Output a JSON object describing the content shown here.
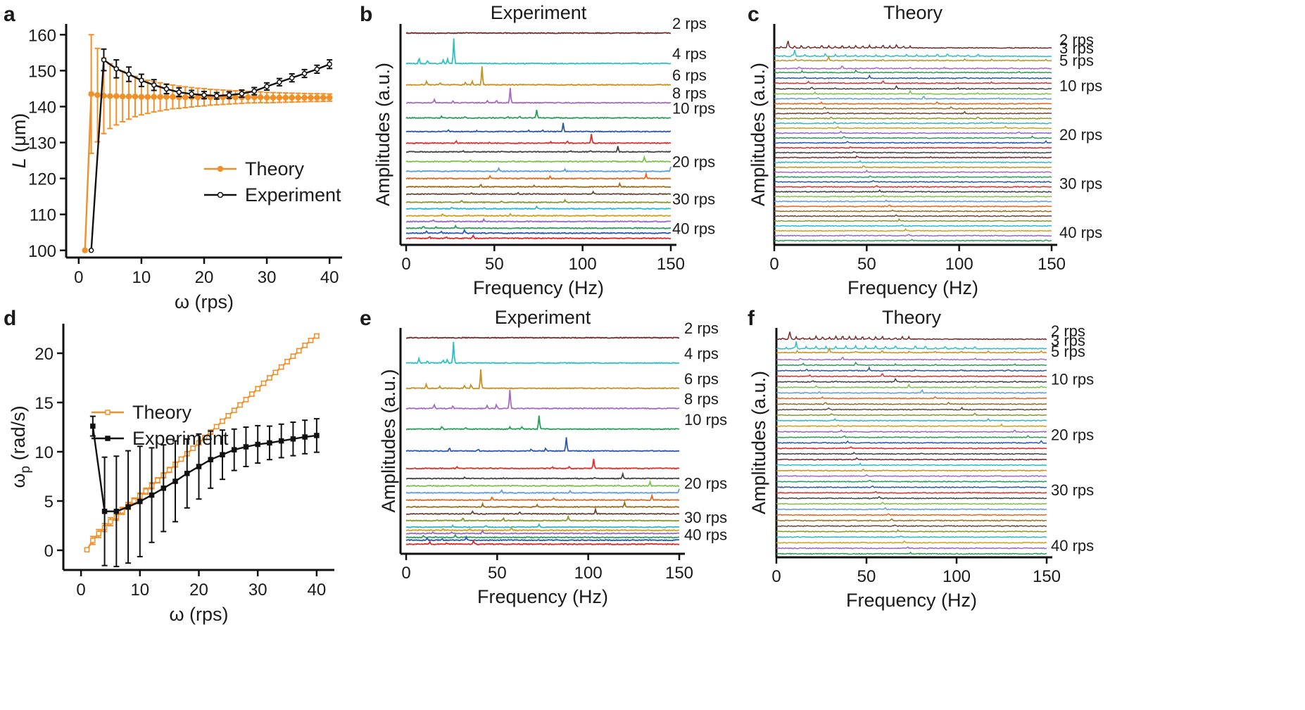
{
  "colors": {
    "theory": "#f0902a",
    "experiment": "#111111",
    "trace_palette": [
      "#7a2a2a",
      "#2cc1c6",
      "#c69220",
      "#a56bc4",
      "#27a05a",
      "#2d5aa8",
      "#e03030",
      "#444444",
      "#7ec34a",
      "#5e9ee6",
      "#e8681c",
      "#9a6f22",
      "#6b4a3a",
      "#8a9a2a",
      "#33b8c8",
      "#d6a01c",
      "#9a68c8",
      "#2e9e5a",
      "#2a58b8",
      "#e02828",
      "#444444"
    ]
  },
  "chart_data": [
    {
      "id": "a",
      "panel_label": "a",
      "type": "line",
      "title": "",
      "xlabel": "ω (rps)",
      "ylabel_italic": "L",
      "ylabel_rest": " (μm)",
      "xlim": [
        -2,
        42
      ],
      "ylim": [
        98,
        163
      ],
      "xticks": [
        "0",
        "10",
        "20",
        "30",
        "40"
      ],
      "yticks": [
        "100",
        "110",
        "120",
        "130",
        "140",
        "150",
        "160"
      ],
      "series": [
        {
          "name": "Theory",
          "x": [
            1,
            2,
            3,
            4,
            5,
            6,
            7,
            8,
            9,
            10,
            11,
            12,
            13,
            14,
            15,
            16,
            17,
            18,
            19,
            20,
            21,
            22,
            23,
            24,
            25,
            26,
            27,
            28,
            29,
            30,
            31,
            32,
            33,
            34,
            35,
            36,
            37,
            38,
            39,
            40
          ],
          "y": [
            100,
            143.5,
            143.2,
            143,
            142.9,
            142.9,
            142.8,
            142.8,
            142.8,
            142.7,
            142.7,
            142.7,
            142.7,
            142.7,
            142.7,
            142.6,
            142.6,
            142.6,
            142.6,
            142.6,
            142.6,
            142.6,
            142.6,
            142.6,
            142.6,
            142.6,
            142.6,
            142.6,
            142.6,
            142.5,
            142.5,
            142.5,
            142.5,
            142.5,
            142.5,
            142.5,
            142.5,
            142.5,
            142.5,
            142.5
          ],
          "err": [
            0,
            16.5,
            13,
            10.5,
            9,
            8,
            7,
            6.3,
            5.6,
            5,
            4.6,
            4.2,
            3.9,
            3.6,
            3.3,
            3.1,
            2.9,
            2.7,
            2.5,
            2.4,
            2.2,
            2.1,
            2,
            1.9,
            1.8,
            1.7,
            1.6,
            1.55,
            1.5,
            1.45,
            1.4,
            1.35,
            1.3,
            1.25,
            1.2,
            1.15,
            1.1,
            1.1,
            1.05,
            1
          ]
        },
        {
          "name": "Experiment",
          "x": [
            2,
            4,
            6,
            8,
            10,
            12,
            14,
            16,
            18,
            20,
            22,
            24,
            26,
            28,
            30,
            32,
            34,
            36,
            38,
            40
          ],
          "y": [
            100,
            153,
            150.5,
            149,
            147.3,
            146,
            144.9,
            144,
            143.5,
            143.2,
            143,
            143.2,
            143.6,
            144.3,
            145.6,
            146.8,
            148,
            149.2,
            150.4,
            151.8
          ],
          "err": [
            0,
            3,
            2.5,
            2,
            1.7,
            1.5,
            1.3,
            1.2,
            1,
            1,
            0.9,
            0.9,
            1,
            1,
            1,
            1,
            1.1,
            1.1,
            1.1,
            1.2
          ]
        }
      ],
      "legend": [
        "Theory",
        "Experiment"
      ]
    },
    {
      "id": "d",
      "panel_label": "d",
      "type": "line",
      "title": "",
      "xlabel": "ω (rps)",
      "ylabel_main": "ω",
      "ylabel_sub": "p",
      "ylabel_rest": " (rad/s)",
      "xlim": [
        -3,
        43
      ],
      "ylim": [
        -2,
        23
      ],
      "xticks": [
        "0",
        "10",
        "20",
        "30",
        "40"
      ],
      "yticks": [
        "0",
        "5",
        "10",
        "15",
        "20"
      ],
      "series": [
        {
          "name": "Theory",
          "x": [
            1,
            2,
            3,
            4,
            5,
            6,
            7,
            8,
            9,
            10,
            11,
            12,
            13,
            14,
            15,
            16,
            17,
            18,
            19,
            20,
            21,
            22,
            23,
            24,
            25,
            26,
            27,
            28,
            29,
            30,
            31,
            32,
            33,
            34,
            35,
            36,
            37,
            38,
            39,
            40
          ],
          "y": [
            0.05,
            1.0,
            1.7,
            2.3,
            2.9,
            3.4,
            4.0,
            4.5,
            5.0,
            5.5,
            6.0,
            6.55,
            7.1,
            7.6,
            8.15,
            8.7,
            9.25,
            9.8,
            10.35,
            10.9,
            11.45,
            12.0,
            12.55,
            13.1,
            13.65,
            14.2,
            14.75,
            15.3,
            15.85,
            16.4,
            16.95,
            17.5,
            18.05,
            18.6,
            19.15,
            19.7,
            20.25,
            20.8,
            21.3,
            21.75
          ],
          "err": [
            0.15,
            0.4,
            0.4,
            0.4,
            0.4,
            0.35,
            0.35,
            0.35,
            0.3,
            0.3,
            0.3,
            0.3,
            0.25,
            0.25,
            0.25,
            0.25,
            0.2,
            0.2,
            0.2,
            0.2,
            0.2,
            0.2,
            0.2,
            0.2,
            0.2,
            0.2,
            0.2,
            0.2,
            0.2,
            0.2,
            0.2,
            0.2,
            0.2,
            0.2,
            0.2,
            0.2,
            0.2,
            0.2,
            0.2,
            0.2
          ]
        },
        {
          "name": "Experiment",
          "x": [
            2,
            4,
            6,
            8,
            10,
            12,
            14,
            16,
            18,
            20,
            22,
            24,
            26,
            28,
            30,
            32,
            34,
            36,
            38,
            40
          ],
          "y": [
            12.6,
            3.95,
            3.95,
            4.4,
            4.95,
            5.6,
            6.3,
            7.0,
            7.8,
            8.5,
            9.2,
            9.7,
            10.2,
            10.5,
            10.75,
            10.9,
            11.1,
            11.3,
            11.5,
            11.65
          ],
          "err": [
            1.0,
            5.5,
            5.6,
            5.7,
            5.6,
            4.8,
            4.4,
            4.1,
            3.5,
            3.3,
            2.9,
            2.5,
            2.1,
            2.0,
            1.9,
            1.7,
            1.7,
            1.7,
            1.7,
            1.7
          ]
        }
      ],
      "legend": [
        "Theory",
        "Experiment"
      ]
    },
    {
      "id": "b",
      "panel_label": "b",
      "type": "line",
      "title": "Experiment",
      "xlabel": "Frequency (Hz)",
      "ylabel": "Amplitudes (a.u.)",
      "xlim": [
        0,
        150
      ],
      "xticks": [
        "0",
        "50",
        "100",
        "150"
      ],
      "speeds_rps": [
        2,
        4,
        6,
        8,
        10,
        12,
        14,
        16,
        18,
        20,
        22,
        24,
        26,
        28,
        30,
        32,
        34,
        36,
        38,
        40
      ],
      "peak_freq_hz": [
        14,
        27,
        43,
        59,
        74,
        89,
        105,
        120,
        135,
        150,
        136,
        121,
        106,
        90,
        74,
        59,
        44,
        28,
        33,
        38
      ],
      "trace_offsets_norm": [
        0,
        0.147,
        0.25,
        0.337,
        0.41,
        0.476,
        0.532,
        0.574,
        0.621,
        0.668,
        0.703,
        0.743,
        0.778,
        0.818,
        0.849,
        0.883,
        0.911,
        0.943,
        0.967,
        0.992
      ],
      "peak_heights_norm": [
        0,
        0.12,
        0.09,
        0.072,
        0.04,
        0.04,
        0.046,
        0.028,
        0.02,
        0.02,
        0.02,
        0.016,
        0.01,
        0.012,
        0.01,
        0.01,
        0.01,
        0.012,
        0.016,
        0.015
      ],
      "right_labels": [
        {
          "text": "2 rps",
          "trace": 0
        },
        {
          "text": "4 rps",
          "trace": 1
        },
        {
          "text": "6 rps",
          "trace": 2
        },
        {
          "text": "8 rps",
          "trace": 3
        },
        {
          "text": "10 rps",
          "trace": 4
        },
        {
          "text": "20 rps",
          "trace": 9
        },
        {
          "text": "30 rps",
          "trace": 14
        },
        {
          "text": "40 rps",
          "trace": 19
        }
      ]
    },
    {
      "id": "e",
      "panel_label": "e",
      "type": "line",
      "title": "Experiment",
      "xlabel": "Frequency (Hz)",
      "ylabel": "Amplitudes (a.u.)",
      "xlim": [
        0,
        150
      ],
      "xticks": [
        "0",
        "50",
        "100",
        "150"
      ],
      "speeds_rps": [
        2,
        4,
        6,
        8,
        10,
        12,
        14,
        16,
        18,
        20,
        22,
        24,
        26,
        28,
        30,
        32,
        34,
        36,
        38,
        40
      ],
      "peak_freq_hz": [
        100,
        26,
        41,
        57,
        73,
        88,
        103,
        119,
        134,
        150,
        135,
        120,
        104,
        89,
        73,
        58,
        42,
        27,
        33,
        37
      ],
      "trace_offsets_norm": [
        0,
        0.12,
        0.24,
        0.336,
        0.434,
        0.538,
        0.621,
        0.669,
        0.704,
        0.737,
        0.771,
        0.804,
        0.837,
        0.869,
        0.9,
        0.915,
        0.93,
        0.949,
        0.962,
        0.981
      ],
      "peak_heights_norm": [
        0,
        0.1,
        0.09,
        0.09,
        0.065,
        0.066,
        0.045,
        0.022,
        0.02,
        0.02,
        0.02,
        0.02,
        0.02,
        0.02,
        0.012,
        0.012,
        0.012,
        0.012,
        0.015,
        0.015
      ],
      "right_labels": [
        {
          "text": "2 rps",
          "trace": 0
        },
        {
          "text": "4 rps",
          "trace": 1
        },
        {
          "text": "6 rps",
          "trace": 2
        },
        {
          "text": "8 rps",
          "trace": 3
        },
        {
          "text": "10 rps",
          "trace": 4
        },
        {
          "text": "20 rps",
          "trace": 9
        },
        {
          "text": "30 rps",
          "trace": 14
        },
        {
          "text": "40 rps",
          "trace": 19
        }
      ]
    },
    {
      "id": "c",
      "panel_label": "c",
      "type": "line",
      "title": "Theory",
      "xlabel": "Frequency (Hz)",
      "ylabel": "Amplitudes (a.u.)",
      "xlim": [
        0,
        150
      ],
      "xticks": [
        "0",
        "50",
        "100",
        "150"
      ],
      "speeds_rps": [
        2,
        3,
        4,
        5,
        6,
        7,
        8,
        9,
        10,
        11,
        12,
        13,
        14,
        15,
        16,
        17,
        18,
        19,
        20,
        21,
        22,
        23,
        24,
        25,
        26,
        27,
        28,
        29,
        30,
        31,
        32,
        33,
        34,
        35,
        36,
        37,
        38,
        39,
        40
      ],
      "fundamental_hz": 7.35,
      "trace_offsets_norm": [
        0,
        0.059,
        0.089,
        0.145,
        0.173,
        0.213,
        0.248,
        0.287,
        0.323,
        0.357,
        0.392,
        0.426,
        0.46,
        0.495,
        0.529,
        0.563,
        0.598,
        0.632,
        0.666,
        0.701,
        0.735,
        0.769,
        0.803,
        0.838,
        0.872,
        0.906,
        0.94,
        0.975,
        1.009,
        1.043,
        1.077,
        1.112,
        1.146,
        1.18,
        1.214,
        1.249,
        1.283,
        1.317,
        1.352
      ],
      "right_labels": [
        {
          "text": "2 rps",
          "trace": 0
        },
        {
          "text": "3 rps",
          "trace": 1
        },
        {
          "text": "5 rps",
          "trace": 3
        },
        {
          "text": "10 rps",
          "trace": 8
        },
        {
          "text": "20 rps",
          "trace": 18
        },
        {
          "text": "30 rps",
          "trace": 28
        },
        {
          "text": "40 rps",
          "trace": 38
        }
      ]
    },
    {
      "id": "f",
      "panel_label": "f",
      "type": "line",
      "title": "Theory",
      "xlabel": "Frequency (Hz)",
      "ylabel": "Amplitudes (a.u.)",
      "xlim": [
        0,
        150
      ],
      "xticks": [
        "0",
        "50",
        "100",
        "150"
      ],
      "speeds_rps": [
        2,
        3,
        4,
        5,
        6,
        7,
        8,
        9,
        10,
        11,
        12,
        13,
        14,
        15,
        16,
        17,
        18,
        19,
        20,
        21,
        22,
        23,
        24,
        25,
        26,
        27,
        28,
        29,
        30,
        31,
        32,
        33,
        34,
        35,
        36,
        37,
        38,
        39,
        40
      ],
      "fundamental_hz": 7.35,
      "trace_offsets_norm": [
        0,
        0.06,
        0.085,
        0.13,
        0.165,
        0.2,
        0.236,
        0.271,
        0.306,
        0.341,
        0.376,
        0.412,
        0.447,
        0.482,
        0.517,
        0.552,
        0.588,
        0.623,
        0.658,
        0.693,
        0.728,
        0.764,
        0.799,
        0.834,
        0.869,
        0.904,
        0.94,
        0.975,
        1.01,
        1.045,
        1.08,
        1.116,
        1.151,
        1.186,
        1.221,
        1.256,
        1.292,
        1.327,
        1.362
      ],
      "right_labels": [
        {
          "text": "2 rps",
          "trace": 0
        },
        {
          "text": "3 rps",
          "trace": 1
        },
        {
          "text": "5 rps",
          "trace": 3
        },
        {
          "text": "10 rps",
          "trace": 8
        },
        {
          "text": "20 rps",
          "trace": 18
        },
        {
          "text": "30 rps",
          "trace": 28
        },
        {
          "text": "40 rps",
          "trace": 38
        }
      ]
    }
  ]
}
